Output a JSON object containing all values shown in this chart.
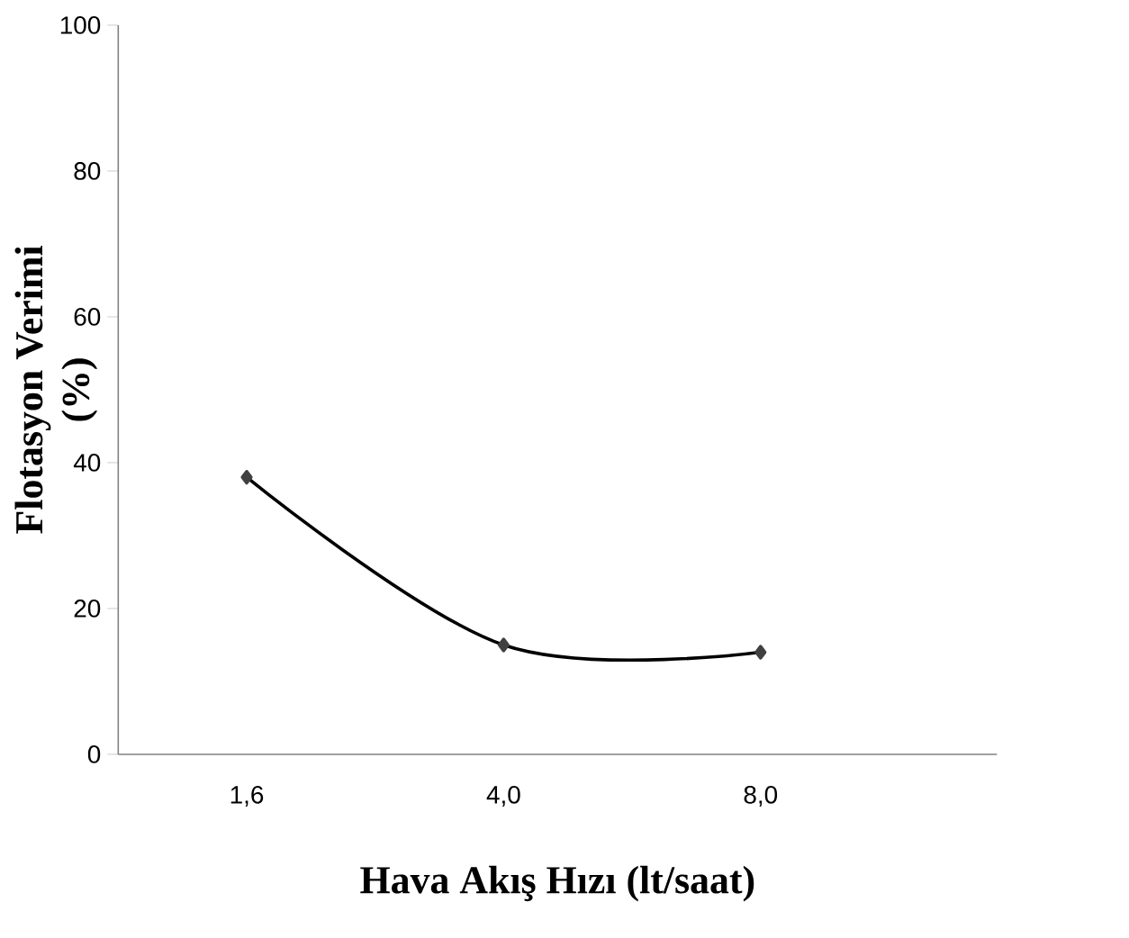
{
  "chart_data": {
    "type": "line",
    "xlabel": "Hava Akış Hızı (lt/saat)",
    "ylabel": "Flotasyon Verimi (%)",
    "categories": [
      "1,6",
      "4,0",
      "8,0"
    ],
    "series": [
      {
        "color": "#000000",
        "values": [
          38,
          15,
          14
        ]
      }
    ],
    "marker": "diamond",
    "line_style": "solid",
    "ylim": [
      0,
      100
    ],
    "yticks": [
      0,
      20,
      40,
      60,
      80,
      100
    ],
    "grid": false
  }
}
